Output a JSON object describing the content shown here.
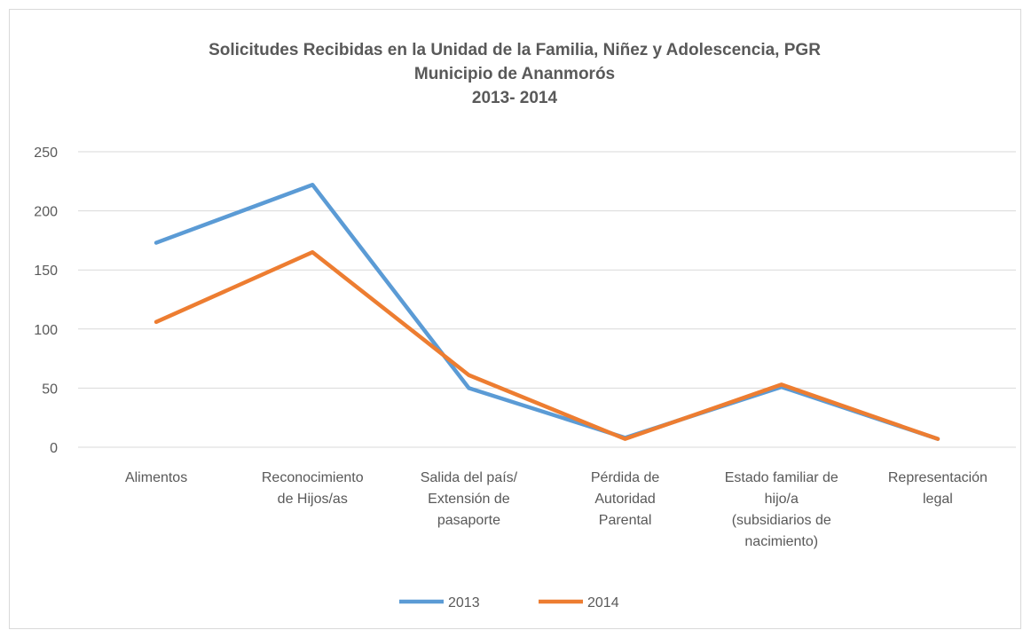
{
  "chart_data": {
    "type": "line",
    "title": "Solicitudes Recibidas en la Unidad de la Familia, Niñez y Adolescencia, PGR\nMunicipio de Ananmorós\n2013- 2014",
    "categories": [
      "Alimentos",
      "Reconocimiento\nde Hijos/as",
      "Salida del país/\nExtensión de\npasaporte",
      "Pérdida de\nAutoridad\nParental",
      "Estado familiar de\nhijo/a\n(subsidiarios de\nnacimiento)",
      "Representación\nlegal"
    ],
    "series": [
      {
        "name": "2013",
        "color": "#5b9bd5",
        "values": [
          173,
          222,
          50,
          8,
          51,
          7
        ]
      },
      {
        "name": "2014",
        "color": "#ed7d31",
        "values": [
          106,
          165,
          61,
          7,
          53,
          7
        ]
      }
    ],
    "ylim": [
      0,
      250
    ],
    "yticks": [
      0,
      50,
      100,
      150,
      200,
      250
    ],
    "grid": true,
    "legend": "bottom"
  }
}
